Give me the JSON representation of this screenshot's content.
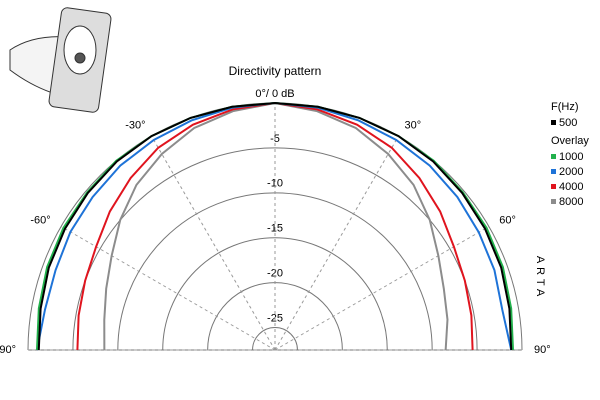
{
  "chart_data": {
    "type": "polar",
    "title": "Directivity pattern",
    "x": [
      -90,
      -80,
      -70,
      -60,
      -50,
      -40,
      -30,
      -20,
      -10,
      0,
      10,
      20,
      30,
      40,
      50,
      60,
      70,
      80,
      90
    ],
    "xticks": [
      {
        "value": -90,
        "label": "-90°"
      },
      {
        "value": -60,
        "label": "-60°"
      },
      {
        "value": -30,
        "label": "-30°"
      },
      {
        "value": 0,
        "label": "0°/ 0 dB"
      },
      {
        "value": 30,
        "label": "30°"
      },
      {
        "value": 60,
        "label": "60°"
      },
      {
        "value": 90,
        "label": "90°"
      }
    ],
    "ylim": [
      -27.5,
      0
    ],
    "yticks": [
      -5,
      -10,
      -15,
      -20,
      -25
    ],
    "legend_titles": [
      "F(Hz)",
      "Overlay"
    ],
    "watermark": "ARTA",
    "series": [
      {
        "name": "500",
        "group": 0,
        "color": "#000000",
        "values": [
          -1.2,
          -1,
          -0.7,
          -0.5,
          -0.3,
          -0.1,
          0,
          0,
          0,
          0,
          0,
          0,
          0,
          -0.1,
          -0.3,
          -0.5,
          -0.7,
          -1,
          -1.2
        ]
      },
      {
        "name": "1000",
        "group": 1,
        "color": "#22b14c",
        "values": [
          -1,
          -0.8,
          -0.5,
          -0.3,
          -0.2,
          0,
          0,
          0,
          0,
          0,
          0,
          0,
          0,
          0,
          -0.2,
          -0.3,
          -0.5,
          -0.8,
          -1
        ]
      },
      {
        "name": "2000",
        "group": 1,
        "color": "#1e73d8",
        "values": [
          -1,
          -1.5,
          -1.5,
          -1.2,
          -1,
          -0.7,
          -0.5,
          -0.3,
          -0.1,
          0,
          -0.1,
          -0.3,
          -0.5,
          -0.7,
          -1,
          -1.3,
          -1.5,
          -1.8,
          -1.2
        ]
      },
      {
        "name": "4000",
        "group": 1,
        "color": "#e0141e",
        "values": [
          -5.5,
          -5.3,
          -5,
          -4.5,
          -3.5,
          -2.5,
          -1.5,
          -0.8,
          -0.3,
          0,
          -0.3,
          -0.8,
          -1.5,
          -2.5,
          -3.5,
          -4.5,
          -5,
          -5.3,
          -5.5
        ]
      },
      {
        "name": "8000",
        "group": 1,
        "color": "#8c8c8c",
        "values": [
          -8.5,
          -8.2,
          -7.5,
          -6.5,
          -5,
          -3.5,
          -2.3,
          -1.2,
          -0.5,
          0,
          -0.5,
          -1.2,
          -2.3,
          -3.5,
          -5,
          -6.5,
          -7.5,
          -8,
          -8.5
        ]
      }
    ]
  }
}
